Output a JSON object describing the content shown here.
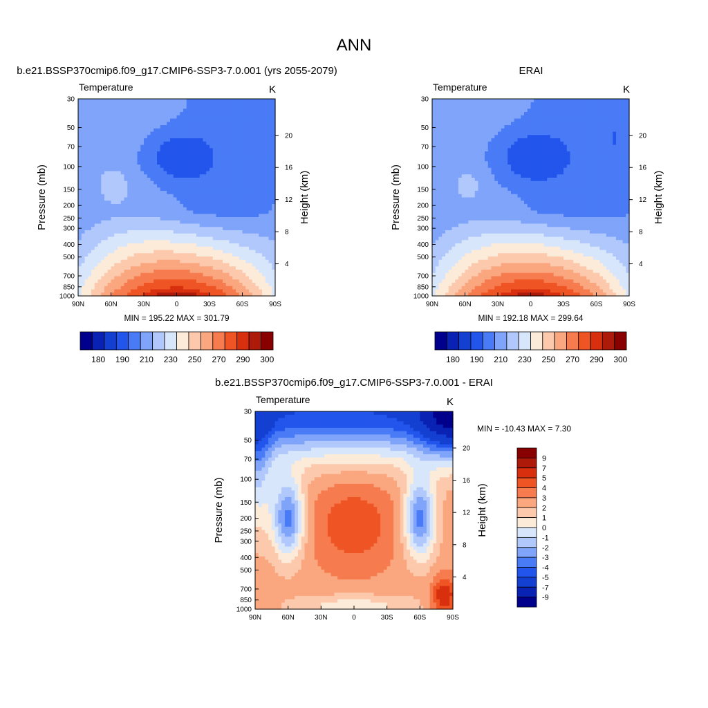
{
  "figure": {
    "title": "ANN"
  },
  "chart_data": [
    {
      "type": "heatmap",
      "title": "b.e21.BSSP370cmip6.f09_g17.CMIP6-SSP3-7.0.001 (yrs 2055-2079)",
      "variable": "Temperature",
      "units": "K",
      "ylabel": "Pressure (mb)",
      "y2label": "Height (km)",
      "x_ticks": [
        "90N",
        "60N",
        "30N",
        "0",
        "30S",
        "60S",
        "90S"
      ],
      "y_ticks": [
        30,
        50,
        70,
        100,
        150,
        200,
        250,
        300,
        400,
        500,
        700,
        850,
        1000
      ],
      "y2_ticks": [
        20,
        16,
        12,
        8,
        4
      ],
      "ylim": [
        1000,
        30
      ],
      "xlim": [
        90,
        -90
      ],
      "min_text": "MIN = 195.22  MAX = 301.79",
      "min": 195.22,
      "max": 301.79,
      "colorbar_orientation": "horizontal",
      "colorbar_labels": [
        "180",
        "190",
        "210",
        "230",
        "250",
        "270",
        "290",
        "300"
      ],
      "levels": [
        180,
        185,
        190,
        200,
        210,
        220,
        230,
        240,
        250,
        260,
        270,
        280,
        290,
        295,
        300
      ]
    },
    {
      "type": "heatmap",
      "title": "ERAI",
      "variable": "Temperature",
      "units": "K",
      "ylabel": "Pressure (mb)",
      "y2label": "Height (km)",
      "x_ticks": [
        "90N",
        "60N",
        "30N",
        "0",
        "30S",
        "60S",
        "90S"
      ],
      "y_ticks": [
        30,
        50,
        70,
        100,
        150,
        200,
        250,
        300,
        400,
        500,
        700,
        850,
        1000
      ],
      "y2_ticks": [
        20,
        16,
        12,
        8,
        4
      ],
      "ylim": [
        1000,
        30
      ],
      "xlim": [
        90,
        -90
      ],
      "min_text": "MIN = 192.18  MAX = 299.64",
      "min": 192.18,
      "max": 299.64,
      "colorbar_orientation": "horizontal",
      "colorbar_labels": [
        "180",
        "190",
        "210",
        "230",
        "250",
        "270",
        "290",
        "300"
      ],
      "levels": [
        180,
        185,
        190,
        200,
        210,
        220,
        230,
        240,
        250,
        260,
        270,
        280,
        290,
        295,
        300
      ]
    },
    {
      "type": "heatmap",
      "title": "b.e21.BSSP370cmip6.f09_g17.CMIP6-SSP3-7.0.001 - ERAI",
      "variable": "Temperature",
      "units": "K",
      "ylabel": "Pressure (mb)",
      "y2label": "Height (km)",
      "x_ticks": [
        "90N",
        "60N",
        "30N",
        "0",
        "30S",
        "60S",
        "90S"
      ],
      "y_ticks": [
        30,
        50,
        70,
        100,
        150,
        200,
        250,
        300,
        400,
        500,
        700,
        850,
        1000
      ],
      "y2_ticks": [
        20,
        16,
        12,
        8,
        4
      ],
      "ylim": [
        1000,
        30
      ],
      "xlim": [
        90,
        -90
      ],
      "min_text": "MIN = -10.43  MAX =   7.30",
      "min": -10.43,
      "max": 7.3,
      "colorbar_orientation": "vertical",
      "colorbar_labels": [
        "9",
        "7",
        "5",
        "4",
        "3",
        "2",
        "1",
        "0",
        "-1",
        "-2",
        "-3",
        "-4",
        "-5",
        "-7",
        "-9"
      ],
      "levels": [
        -9,
        -7,
        -5,
        -4,
        -3,
        -2,
        -1,
        0,
        1,
        2,
        3,
        4,
        5,
        7,
        9
      ]
    }
  ],
  "palette": [
    "#00008c",
    "#0a22b4",
    "#1440d2",
    "#2255ec",
    "#4a7bf6",
    "#7fa4fa",
    "#b0c8fb",
    "#d7e6fb",
    "#fdebd9",
    "#fcc9ad",
    "#faa67f",
    "#f67c4f",
    "#ee5424",
    "#d8300f",
    "#ae1a0a",
    "#880000"
  ]
}
